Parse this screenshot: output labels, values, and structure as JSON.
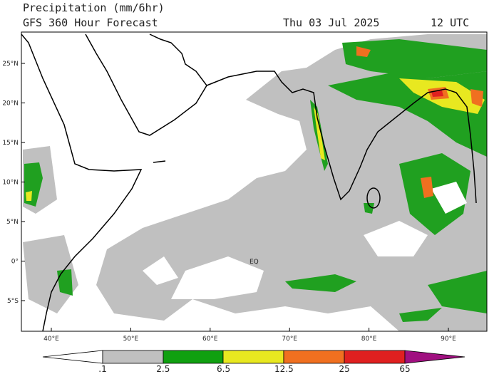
{
  "header": {
    "title": "Precipitation (mm/6hr)",
    "subtitle": "GFS 360 Hour Forecast",
    "date": "Thu 03 Jul 2025",
    "time": "12 UTC"
  },
  "map": {
    "lat_labels": [
      "25°N",
      "20°N",
      "15°N",
      "10°N",
      "5°N",
      "0°",
      "5°S"
    ],
    "lon_labels": [
      "40°E",
      "50°E",
      "60°E",
      "70°E",
      "80°E",
      "90°E"
    ],
    "equator_label": "EQ"
  },
  "colorbar": {
    "labels": [
      ".1",
      "2.5",
      "6.5",
      "12.5",
      "25",
      "65"
    ]
  }
}
